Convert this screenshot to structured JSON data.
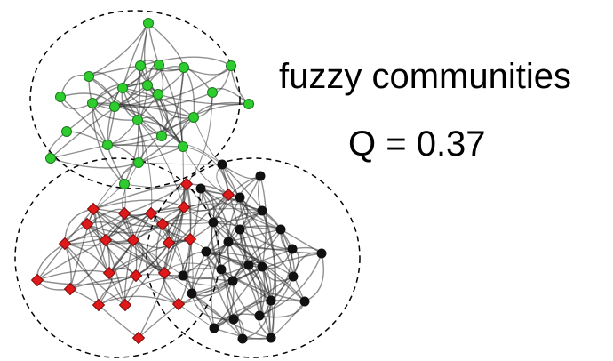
{
  "label": "fuzzy communities",
  "modularity": "Q = 0.37",
  "colors": {
    "green": "#2ecc2e",
    "red": "#e01a1a",
    "black": "#111111",
    "edge": "#333333",
    "circle": "#000000"
  },
  "communities": [
    "green",
    "red",
    "black"
  ]
}
